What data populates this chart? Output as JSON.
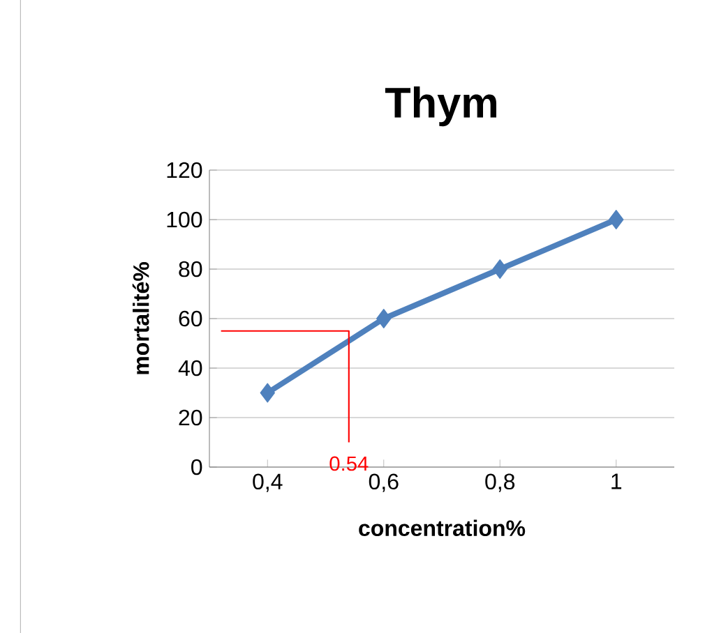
{
  "chart_data": {
    "type": "line",
    "title": "Thym",
    "xlabel": "concentration%",
    "ylabel": "mortalité%",
    "xlim": [
      0.3,
      1.1
    ],
    "xticks": [
      {
        "value": 0.4,
        "label": "0,4"
      },
      {
        "value": 0.6,
        "label": "0,6"
      },
      {
        "value": 0.8,
        "label": "0,8"
      },
      {
        "value": 1,
        "label": "1"
      }
    ],
    "ylim": [
      0,
      120
    ],
    "yticks": [
      0,
      20,
      40,
      60,
      80,
      100,
      120
    ],
    "grid": "y",
    "marker": "diamond",
    "line_style": "solid",
    "series": [
      {
        "x": [
          0.4,
          0.6,
          0.8,
          1
        ],
        "values": [
          30,
          60,
          80,
          100
        ],
        "color": "#4f81bd"
      },
      {
        "x": [
          0.32,
          0.54,
          0.54
        ],
        "values": [
          55,
          55,
          10
        ],
        "color": "#ff0000",
        "marker": "none"
      }
    ],
    "annotations": [
      {
        "text": "0.54",
        "x": 0.54,
        "y": 10
      }
    ]
  }
}
